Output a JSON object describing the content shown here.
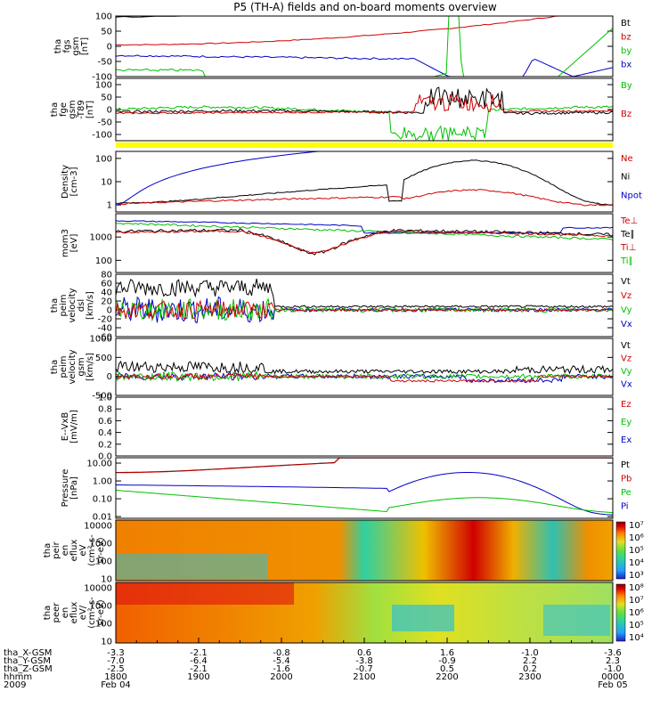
{
  "chart_data": {
    "type": "line",
    "title": "P5 (TH-A) fields and on-board moments overview",
    "x_time_ticks": [
      "1800",
      "1900",
      "2000",
      "2100",
      "2200",
      "2300",
      "0000"
    ],
    "x_date_ticks": [
      "Feb 04",
      "",
      "",
      "",
      "",
      "",
      "Feb 05"
    ],
    "year_label": "2009",
    "ephemeris": [
      {
        "label": "tha_X-GSM",
        "values": [
          "-3.3",
          "-2.1",
          "-0.8",
          "0.6",
          "1.6",
          "-1.0",
          "-3.6"
        ]
      },
      {
        "label": "tha_Y-GSM",
        "values": [
          "-7.0",
          "-6.4",
          "-5.4",
          "-3.8",
          "-0.9",
          "2.2",
          "2.3"
        ]
      },
      {
        "label": "tha_Z-GSM",
        "values": [
          "-2.5",
          "-2.1",
          "-1.6",
          "-0.7",
          "0.5",
          "0.2",
          "-1.0"
        ]
      },
      {
        "label": "hhmm",
        "values": []
      }
    ],
    "panels": [
      {
        "id": "fgs",
        "ylabel": [
          "tha",
          "fgs",
          "gsm",
          "[nT]"
        ],
        "ylim": [
          -100,
          100
        ],
        "scale": "linear",
        "ticks": [
          "100",
          "50",
          "0",
          "-50",
          "-100"
        ],
        "legend": [
          {
            "name": "Bt",
            "color": "#000000"
          },
          {
            "name": "bz",
            "color": "#d00000"
          },
          {
            "name": "by",
            "color": "#00c000"
          },
          {
            "name": "bx",
            "color": "#0000c8"
          }
        ]
      },
      {
        "id": "fge",
        "ylabel": [
          "tha",
          "fge",
          "gsm",
          "-T89",
          "[nT]"
        ],
        "ylim": [
          -125,
          125
        ],
        "scale": "linear",
        "ticks": [
          "100",
          "50",
          "0",
          "-50",
          "-100"
        ],
        "legend": [
          {
            "name": "By",
            "color": "#00c000"
          },
          {
            "name": "Bz",
            "color": "#d00000"
          }
        ]
      },
      {
        "id": "density",
        "ylabel": [
          "Density",
          "[cm-3]"
        ],
        "ylim": [
          0.5,
          200
        ],
        "scale": "log",
        "ticks": [
          "100",
          "10",
          "1"
        ],
        "legend": [
          {
            "name": "Ne",
            "color": "#d00000"
          },
          {
            "name": "Ni",
            "color": "#000000"
          },
          {
            "name": "Npot",
            "color": "#0000c8"
          }
        ]
      },
      {
        "id": "temp",
        "ylabel": [
          "mom3",
          "[eV]"
        ],
        "ylim": [
          30,
          10000
        ],
        "scale": "log",
        "ticks": [
          "1000",
          "100"
        ],
        "legend": [
          {
            "name": "Te⊥",
            "color": "#d00000"
          },
          {
            "name": "Te∥",
            "color": "#000000"
          },
          {
            "name": "Ti⊥",
            "color": "#d00000"
          },
          {
            "name": "Ti∥",
            "color": "#00c000"
          }
        ]
      },
      {
        "id": "peim",
        "ylabel": [
          "tha",
          "peim",
          "velocity",
          "dsl",
          "[km/s]"
        ],
        "ylim": [
          -60,
          80
        ],
        "scale": "linear",
        "ticks": [
          "80",
          "60",
          "40",
          "20",
          "0",
          "-20",
          "-40",
          "-60"
        ],
        "legend": [
          {
            "name": "Vt",
            "color": "#000000"
          },
          {
            "name": "Vz",
            "color": "#d00000"
          },
          {
            "name": "Vy",
            "color": "#00c000"
          },
          {
            "name": "Vx",
            "color": "#0000c8"
          }
        ]
      },
      {
        "id": "peimgsm",
        "ylabel": [
          "tha",
          "peim",
          "velocity",
          "gsm",
          "[km/s]"
        ],
        "ylim": [
          -500,
          1000
        ],
        "scale": "linear",
        "ticks": [
          "1000",
          "500",
          "0",
          "-500"
        ],
        "legend": [
          {
            "name": "Vt",
            "color": "#000000"
          },
          {
            "name": "Vz",
            "color": "#d00000"
          },
          {
            "name": "Vy",
            "color": "#00c000"
          },
          {
            "name": "Vx",
            "color": "#0000c8"
          }
        ]
      },
      {
        "id": "efield",
        "ylabel": [
          "E--VxB",
          "[mV/m]"
        ],
        "ylim": [
          0,
          1
        ],
        "scale": "linear",
        "ticks": [
          "1.0",
          "0.8",
          "0.6",
          "0.4",
          "0.2",
          "0.0"
        ],
        "legend": [
          {
            "name": "Ez",
            "color": "#d00000"
          },
          {
            "name": "Ey",
            "color": "#00c000"
          },
          {
            "name": "Ex",
            "color": "#0000c8"
          }
        ]
      },
      {
        "id": "pressure",
        "ylabel": [
          "Pressure",
          "[nPa]"
        ],
        "ylim": [
          0.008,
          20
        ],
        "scale": "log",
        "ticks": [
          "10.00",
          "1.00",
          "0.10",
          "0.01"
        ],
        "legend": [
          {
            "name": "Pt",
            "color": "#000000"
          },
          {
            "name": "Pb",
            "color": "#d00000"
          },
          {
            "name": "Pe",
            "color": "#00c000"
          },
          {
            "name": "Pi",
            "color": "#0000c8"
          }
        ]
      },
      {
        "id": "peir",
        "ylabel": [
          "tha",
          "peir",
          "en",
          "eflux",
          "eV",
          "(cm²-s-",
          "sr-eV)"
        ],
        "ylim": [
          8,
          20000
        ],
        "scale": "log",
        "ticks": [
          "10000",
          "1000",
          "100",
          "10"
        ],
        "colorbar": [
          "10⁷",
          "10⁶",
          "10⁵",
          "10⁴",
          "10³"
        ]
      },
      {
        "id": "peer",
        "ylabel": [
          "tha",
          "peer",
          "en",
          "eflux",
          "eV/",
          "(cm²-s-",
          "sr-eV)"
        ],
        "ylim": [
          8,
          20000
        ],
        "scale": "log",
        "ticks": [
          "10000",
          "1000",
          "100",
          "10"
        ],
        "colorbar": [
          "10⁸",
          "10⁷",
          "10⁶",
          "10⁵",
          "10⁴"
        ]
      }
    ]
  }
}
